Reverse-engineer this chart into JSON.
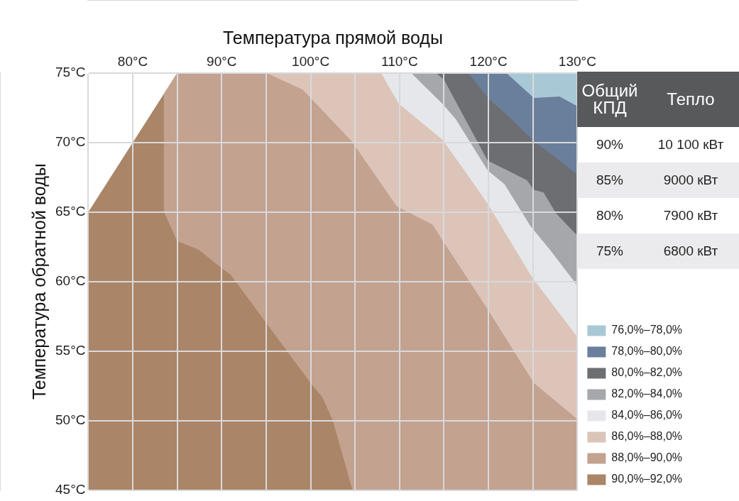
{
  "chart_data": {
    "type": "area",
    "xlabel": "Температура прямой воды",
    "ylabel": "Температура обратной воды",
    "xlim": [
      75,
      130
    ],
    "ylim": [
      45,
      75
    ],
    "xticks": [
      {
        "value": 75,
        "label": null
      },
      {
        "value": 80,
        "label": "80°C"
      },
      {
        "value": 85,
        "label": null
      },
      {
        "value": 90,
        "label": "90°C"
      },
      {
        "value": 95,
        "label": null
      },
      {
        "value": 100,
        "label": "100°C"
      },
      {
        "value": 105,
        "label": null
      },
      {
        "value": 110,
        "label": "110°C"
      },
      {
        "value": 115,
        "label": null
      },
      {
        "value": 120,
        "label": "120°C"
      },
      {
        "value": 125,
        "label": null
      },
      {
        "value": 130,
        "label": "130°C"
      }
    ],
    "yticks": [
      {
        "value": 45,
        "label": "45°C"
      },
      {
        "value": 50,
        "label": "50°C"
      },
      {
        "value": 55,
        "label": "55°C"
      },
      {
        "value": 60,
        "label": "60°C"
      },
      {
        "value": 65,
        "label": "65°C"
      },
      {
        "value": 70,
        "label": "70°C"
      },
      {
        "value": 75,
        "label": "75°C"
      }
    ],
    "grid": true,
    "legend": "bottom right",
    "series": [
      {
        "name": "76,0%–78,0%",
        "color": "#a9c8d6",
        "x": [
          122,
          125.1,
          128,
          130,
          130
        ],
        "values": [
          75,
          73.2,
          73.3,
          72.6,
          75
        ]
      },
      {
        "name": "78,0%–80,0%",
        "color": "#6a7f9b",
        "x": [
          117.7,
          120.1,
          122.9,
          125.1,
          128,
          130,
          130
        ],
        "values": [
          75,
          73.1,
          71.5,
          70.1,
          68.7,
          67.7,
          75
        ]
      },
      {
        "name": "80,0%–82,0%",
        "color": "#6d6e72",
        "x": [
          114.1,
          115,
          119.9,
          124.3,
          125.1,
          126.2,
          127.6,
          130,
          130
        ],
        "values": [
          75,
          74.5,
          68.7,
          67.3,
          66.6,
          66.4,
          64.9,
          63.3,
          75
        ]
      },
      {
        "name": "82,0%–84,0%",
        "color": "#a6a7ab",
        "x": [
          111.3,
          114.8,
          116.3,
          119.9,
          121.8,
          124.7,
          126.9,
          130,
          130
        ],
        "values": [
          75,
          72.8,
          71.7,
          68,
          67,
          64,
          62.3,
          59.7,
          75
        ]
      },
      {
        "name": "84,0%–86,0%",
        "color": "#e6e7ea",
        "x": [
          107.9,
          109.9,
          114.8,
          117.4,
          119.9,
          124.9,
          130,
          130
        ],
        "values": [
          75,
          72.8,
          70.2,
          67.9,
          65.6,
          60.3,
          56,
          75
        ]
      },
      {
        "name": "86,0%–88,0%",
        "color": "#dcc4b8",
        "x": [
          95,
          99.1,
          104.6,
          109.7,
          113.7,
          114.8,
          120,
          125.1,
          130,
          130
        ],
        "values": [
          75,
          73.8,
          70.1,
          65.4,
          64.1,
          63,
          57.9,
          52.7,
          50.1,
          75
        ]
      },
      {
        "name": "88,0%–90,0%",
        "color": "#c3a290",
        "x": [
          83.5,
          83.5,
          85,
          87.4,
          89.9,
          91,
          94.1,
          100,
          101.3,
          102.5,
          104.7,
          130,
          130,
          85
        ],
        "values": [
          73.5,
          65,
          62.9,
          62.3,
          61,
          60.5,
          57.8,
          52.7,
          51.7,
          50,
          45,
          45,
          75,
          75
        ]
      },
      {
        "name": "90,0%–92,0%",
        "color": "#ab8567",
        "x": [
          75,
          75,
          85,
          130,
          130
        ],
        "values": [
          45,
          65,
          75,
          75,
          45
        ]
      }
    ],
    "annotations": [
      "Общий КПД",
      "Тепло",
      "90%",
      "10 100 кВт",
      "85%",
      "9000 кВт",
      "80%",
      "7900 кВт",
      "75%",
      "6800 кВт"
    ]
  }
}
